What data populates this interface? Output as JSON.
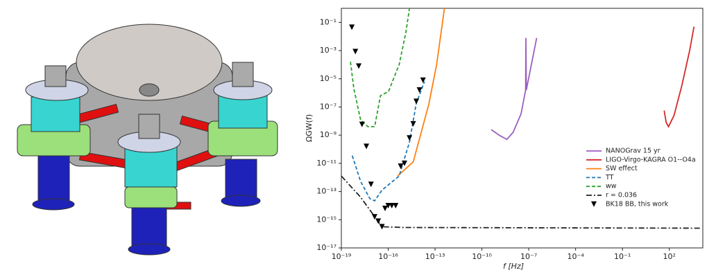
{
  "chart_data": {
    "type": "line",
    "log_x": true,
    "log_y": true,
    "xlabel": "f [Hz]",
    "ylabel": "ΩGW(f)",
    "legend": "lower right",
    "xlim": [
      1e-19,
      14000.0
    ],
    "ylim": [
      1e-17,
      1
    ],
    "xticks": [
      {
        "value": 1e-19,
        "label": "10⁻¹⁹"
      },
      {
        "value": 1e-16,
        "label": "10⁻¹⁶"
      },
      {
        "value": 1e-13,
        "label": "10⁻¹³"
      },
      {
        "value": 1e-10,
        "label": "10⁻¹⁰"
      },
      {
        "value": 1e-07,
        "label": "10⁻⁷"
      },
      {
        "value": 0.0001,
        "label": "10⁻⁴"
      },
      {
        "value": 0.1,
        "label": "10⁻¹"
      },
      {
        "value": 100,
        "label": "10²"
      }
    ],
    "yticks": [
      {
        "value": 1e-17,
        "label": "10⁻¹⁷"
      },
      {
        "value": 1e-15,
        "label": "10⁻¹⁵"
      },
      {
        "value": 1e-13,
        "label": "10⁻¹³"
      },
      {
        "value": 1e-11,
        "label": "10⁻¹¹"
      },
      {
        "value": 1e-09,
        "label": "10⁻⁹"
      },
      {
        "value": 1e-07,
        "label": "10⁻⁷"
      },
      {
        "value": 1e-05,
        "label": "10⁻⁵"
      },
      {
        "value": 0.001,
        "label": "10⁻³"
      },
      {
        "value": 0.1,
        "label": "10⁻¹"
      }
    ],
    "series": [
      {
        "name": "NANOGrav 15 yr",
        "color": "#9b5fc0",
        "dash": "solid",
        "x": [
          4e-10,
          1.26e-09,
          4e-09,
          1e-08,
          3.2e-08,
          6.3e-08,
          6.6e-08,
          7e-08,
          3.2e-07
        ],
        "values": [
          2.5e-09,
          1e-09,
          5e-10,
          1.6e-09,
          3.2e-08,
          1.6e-06,
          0.0079,
          1.6e-06,
          0.0079
        ]
      },
      {
        "name": "LIGO-Virgo-KAGRA O1--O4a",
        "color": "#d62728",
        "dash": "solid",
        "x": [
          47,
          63,
          89,
          200,
          630,
          2000,
          3800
        ],
        "values": [
          5.6e-08,
          7.9e-09,
          4e-09,
          2.5e-08,
          3.2e-06,
          0.001,
          0.05
        ]
      },
      {
        "name": "SW effect",
        "color": "#ff7f0e",
        "dash": "solid",
        "x": [
          4e-16,
          4e-15,
          4e-14,
          1.26e-13,
          4e-13
        ],
        "values": [
          1.26e-12,
          1.26e-11,
          1.6e-07,
          0.0001,
          1
        ]
      },
      {
        "name": "TT",
        "color": "#1f77b4",
        "dash": "dashed",
        "x": [
          5e-19,
          1.7e-18,
          6.6e-18,
          1.35e-17,
          4e-17,
          5e-16,
          2.3e-15,
          6.3e-15,
          2.1e-14
        ],
        "values": [
          3.5e-11,
          5.4e-13,
          3.2e-14,
          2.2e-14,
          1.26e-13,
          1.26e-12,
          3.2e-10,
          1.8e-07,
          6.3e-06
        ]
      },
      {
        "name": "ww",
        "color": "#2ca02c",
        "dash": "dashed",
        "x": [
          3.8e-19,
          6.3e-19,
          1.7e-18,
          5e-18,
          1.35e-17,
          3.2e-17,
          1.05e-16,
          5e-16,
          1.35e-15,
          2.3e-15
        ],
        "values": [
          0.00016,
          2e-06,
          1.26e-08,
          4e-09,
          4e-09,
          6.3e-07,
          1.26e-06,
          0.0001,
          0.02,
          1
        ]
      },
      {
        "name": "r = 0.036",
        "color": "#222222",
        "dash": "dashdot",
        "x": [
          1e-19,
          1.7e-18,
          4e-17,
          1e-15,
          10000.0
        ],
        "values": [
          1.26e-12,
          4e-14,
          3.2e-16,
          2.8e-16,
          2.5e-16
        ]
      },
      {
        "name": "BK18 BB, this work",
        "color": "#000000",
        "dash": "none",
        "marker": "v",
        "x": [
          4.7e-19,
          7.9e-19,
          1.3e-18,
          2.1e-18,
          4e-18,
          7.9e-18,
          1.35e-17,
          2.3e-17,
          4e-17,
          6.3e-17,
          1e-16,
          1.7e-16,
          3e-16,
          6.3e-16,
          1.1e-15,
          2.3e-15,
          4e-15,
          6.3e-15,
          1e-14,
          1.7e-14
        ],
        "values": [
          0.045,
          0.00085,
          7.9e-05,
          5.8e-09,
          1.6e-10,
          3.2e-13,
          1.6e-15,
          7.9e-16,
          3.2e-16,
          6.3e-15,
          1e-14,
          1e-14,
          1e-14,
          6.3e-12,
          1e-11,
          6.3e-10,
          6.3e-09,
          2.5e-07,
          1.6e-06,
          7.9e-06
        ]
      }
    ]
  }
}
